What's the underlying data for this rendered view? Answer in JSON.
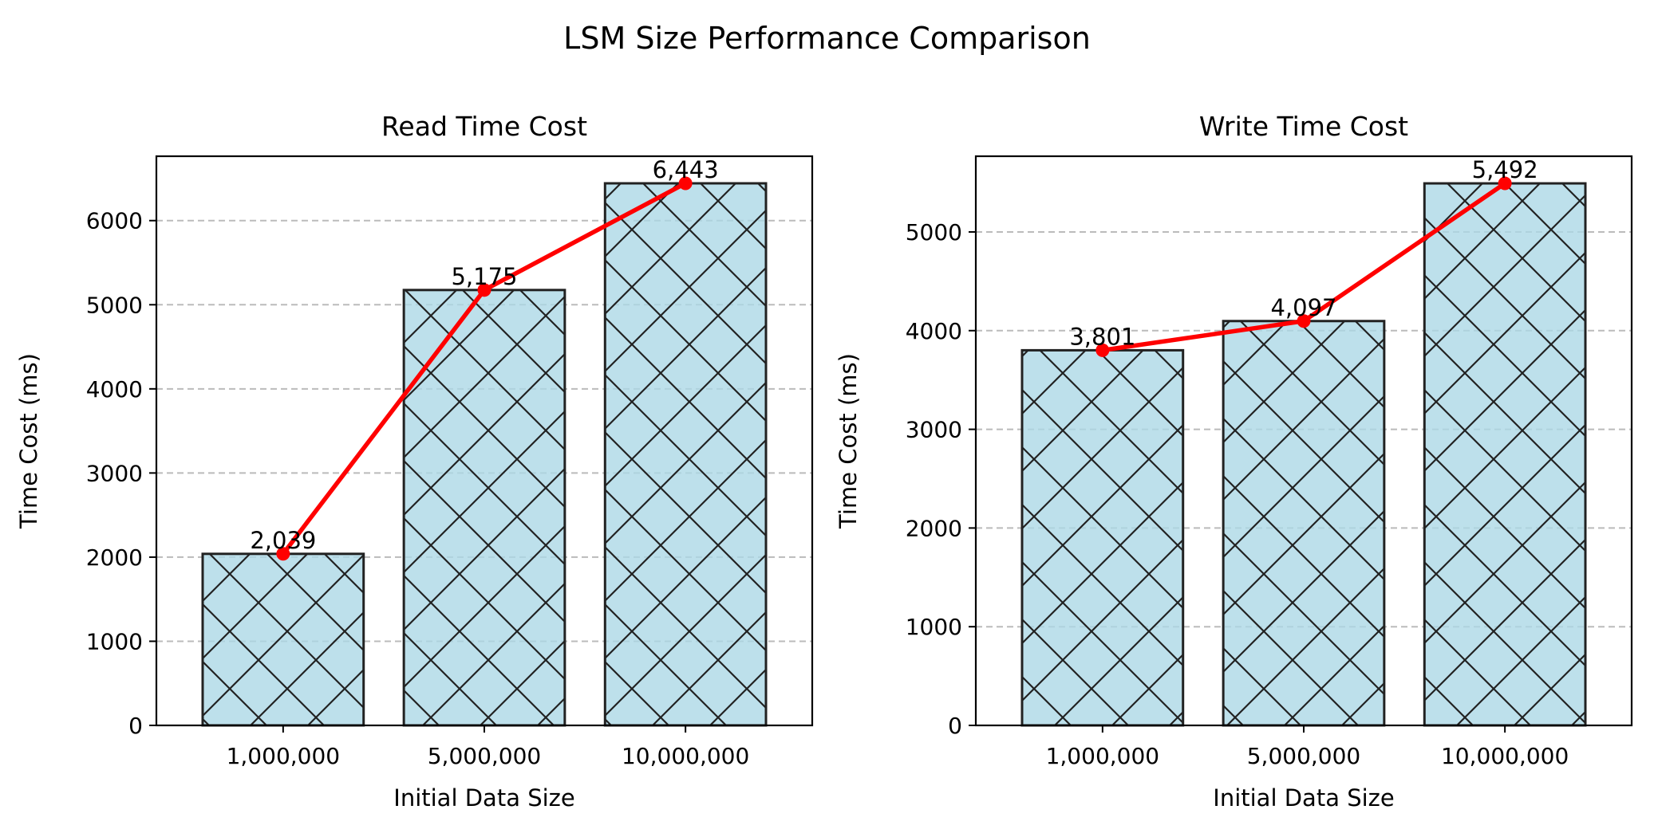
{
  "suptitle": "LSM Size Performance Comparison",
  "colors": {
    "bar_fill": "#add8e6",
    "bar_edge": "#222222",
    "line": "#ff0000",
    "grid": "#bbbbbb"
  },
  "chart_data": [
    {
      "type": "bar",
      "title": "Read Time Cost",
      "xlabel": "Initial Data Size",
      "ylabel": "Time Cost (ms)",
      "categories": [
        "1,000,000",
        "5,000,000",
        "10,000,000"
      ],
      "values": [
        2039,
        5175,
        6443
      ],
      "value_labels": [
        "2,039",
        "5,175",
        "6,443"
      ],
      "yticks": [
        0,
        1000,
        2000,
        3000,
        4000,
        5000,
        6000
      ],
      "ylim": [
        0,
        6765
      ],
      "grid": "y, dashed",
      "overlay": "red line with markers through bar tops",
      "hatch": "x"
    },
    {
      "type": "bar",
      "title": "Write Time Cost",
      "xlabel": "Initial Data Size",
      "ylabel": "Time Cost (ms)",
      "categories": [
        "1,000,000",
        "5,000,000",
        "10,000,000"
      ],
      "values": [
        3801,
        4097,
        5492
      ],
      "value_labels": [
        "3,801",
        "4,097",
        "5,492"
      ],
      "yticks": [
        0,
        1000,
        2000,
        3000,
        4000,
        5000
      ],
      "ylim": [
        0,
        5767
      ],
      "grid": "y, dashed",
      "overlay": "red line with markers through bar tops",
      "hatch": "x"
    }
  ]
}
